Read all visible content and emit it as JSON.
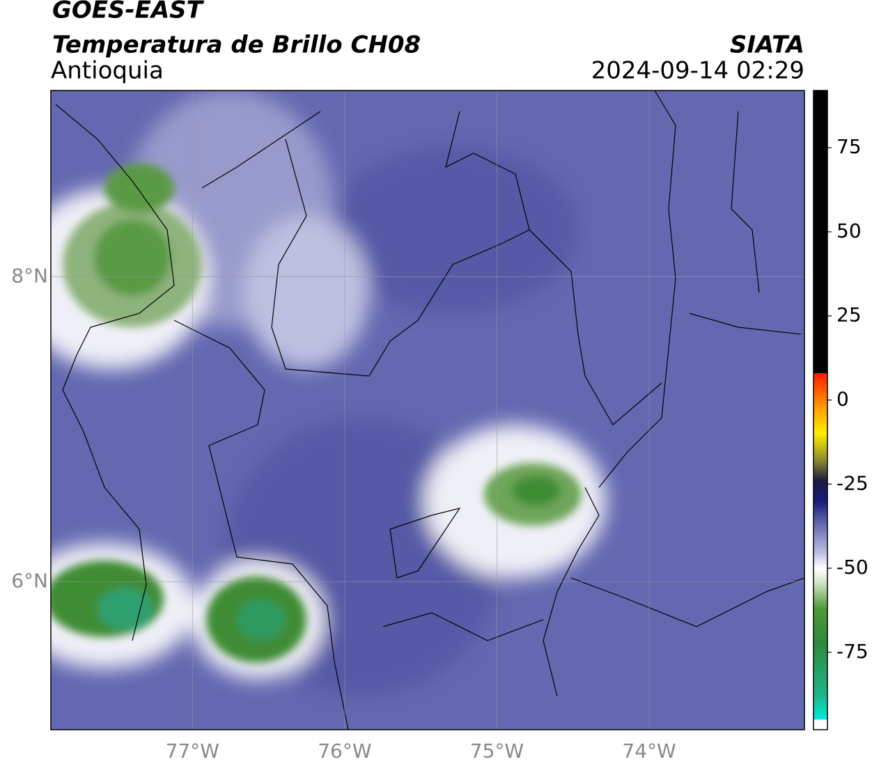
{
  "chart_data": {
    "type": "map",
    "title": "GOES-EAST",
    "subtitle": "Temperatura de Brillo CH08",
    "region": "Antioquia",
    "source": "SIATA",
    "timestamp": "2024-09-14 02:29",
    "xlim": [
      -77.93,
      -72.98
    ],
    "ylim": [
      5.03,
      9.22
    ],
    "xticks": [
      {
        "value": -77,
        "label": "77°W"
      },
      {
        "value": -76,
        "label": "76°W"
      },
      {
        "value": -75,
        "label": "75°W"
      },
      {
        "value": -74,
        "label": "74°W"
      }
    ],
    "yticks": [
      {
        "value": 6,
        "label": "6°N"
      },
      {
        "value": 8,
        "label": "8°N"
      }
    ],
    "grid": true,
    "colorbar": {
      "lim": [
        -98,
        92
      ],
      "ticks": [
        -75,
        -50,
        -25,
        0,
        25,
        50,
        75
      ],
      "stops": [
        {
          "value": -98,
          "color": "#ffffff"
        },
        {
          "value": -95,
          "color": "#ffffff"
        },
        {
          "value": -95,
          "color": "#00eedd"
        },
        {
          "value": -88,
          "color": "#1fb58a"
        },
        {
          "value": -72,
          "color": "#2e8a3a"
        },
        {
          "value": -62,
          "color": "#4e9a3a"
        },
        {
          "value": -54,
          "color": "#d8e6cc"
        },
        {
          "value": -50,
          "color": "#ffffff"
        },
        {
          "value": -45,
          "color": "#b8bade"
        },
        {
          "value": -36,
          "color": "#5b60aa"
        },
        {
          "value": -30,
          "color": "#161a7e"
        },
        {
          "value": -24,
          "color": "#1a1a40"
        },
        {
          "value": -18,
          "color": "#8a8a30"
        },
        {
          "value": -10,
          "color": "#ffee00"
        },
        {
          "value": -2,
          "color": "#ff9900"
        },
        {
          "value": 8,
          "color": "#ff1a00"
        },
        {
          "value": 8,
          "color": "#000000"
        },
        {
          "value": 92,
          "color": "#000000"
        }
      ]
    }
  }
}
